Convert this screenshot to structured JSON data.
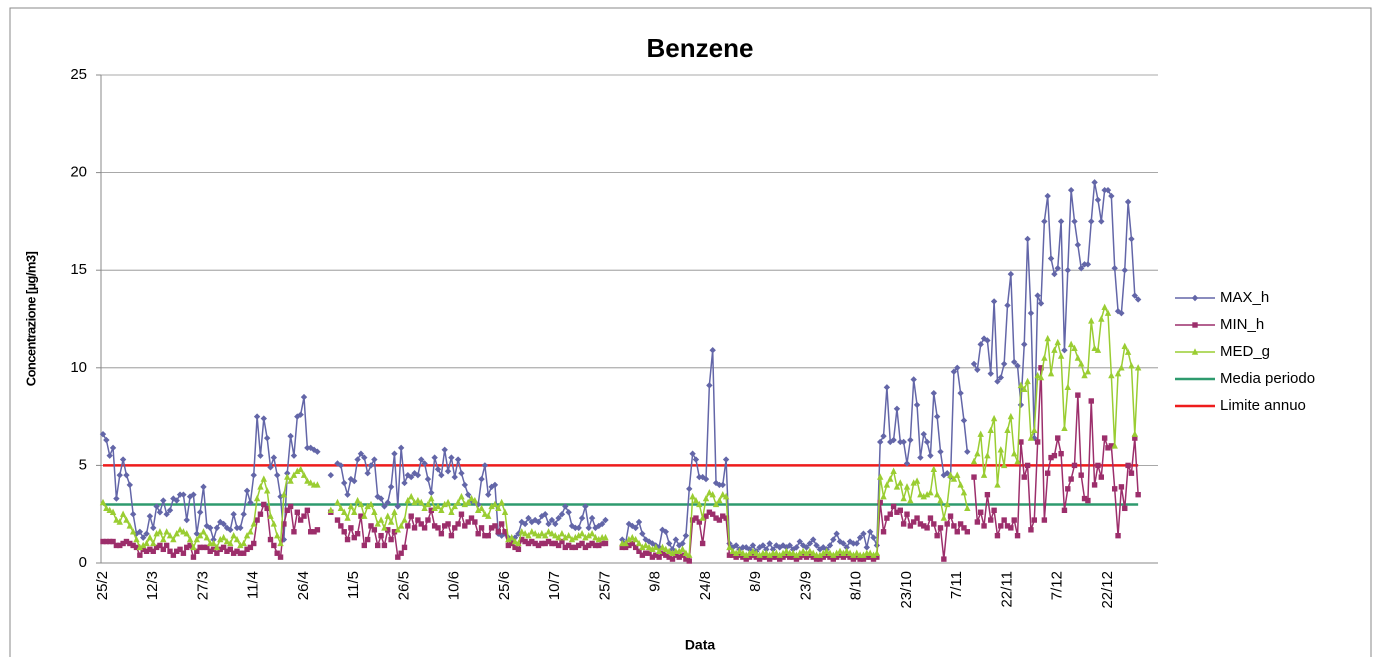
{
  "chart_data": {
    "type": "line",
    "title": "Benzene",
    "x_label": "Data",
    "y_label": "Concentrazione [µg/m3]",
    "categories": [
      "25/2",
      null,
      null,
      null,
      null,
      null,
      null,
      null,
      null,
      null,
      null,
      null,
      null,
      null,
      null,
      "12/3",
      null,
      null,
      null,
      null,
      null,
      null,
      null,
      null,
      null,
      null,
      null,
      null,
      null,
      null,
      "27/3",
      null,
      null,
      null,
      null,
      null,
      null,
      null,
      null,
      null,
      null,
      null,
      null,
      null,
      null,
      "11/4",
      null,
      null,
      null,
      null,
      null,
      null,
      null,
      null,
      null,
      null,
      null,
      null,
      null,
      null,
      "26/4",
      null,
      null,
      null,
      null,
      null,
      null,
      null,
      null,
      null,
      null,
      null,
      null,
      null,
      null,
      "11/5",
      null,
      null,
      null,
      null,
      null,
      null,
      null,
      null,
      null,
      null,
      null,
      null,
      null,
      null,
      "26/5",
      null,
      null,
      null,
      null,
      null,
      null,
      null,
      null,
      null,
      null,
      null,
      null,
      null,
      null,
      "10/6",
      null,
      null,
      null,
      null,
      null,
      null,
      null,
      null,
      null,
      null,
      null,
      null,
      null,
      null,
      "25/6",
      null,
      null,
      null,
      null,
      null,
      null,
      null,
      null,
      null,
      null,
      null,
      null,
      null,
      null,
      "10/7",
      null,
      null,
      null,
      null,
      null,
      null,
      null,
      null,
      null,
      null,
      null,
      null,
      null,
      null,
      "25/7",
      null,
      null,
      null,
      null,
      null,
      null,
      null,
      null,
      null,
      null,
      null,
      null,
      null,
      null,
      "9/8",
      null,
      null,
      null,
      null,
      null,
      null,
      null,
      null,
      null,
      null,
      null,
      null,
      null,
      null,
      "24/8",
      null,
      null,
      null,
      null,
      null,
      null,
      null,
      null,
      null,
      null,
      null,
      null,
      null,
      null,
      "8/9",
      null,
      null,
      null,
      null,
      null,
      null,
      null,
      null,
      null,
      null,
      null,
      null,
      null,
      null,
      "23/9",
      null,
      null,
      null,
      null,
      null,
      null,
      null,
      null,
      null,
      null,
      null,
      null,
      null,
      null,
      "8/10",
      null,
      null,
      null,
      null,
      null,
      null,
      null,
      null,
      null,
      null,
      null,
      null,
      null,
      null,
      "23/10",
      null,
      null,
      null,
      null,
      null,
      null,
      null,
      null,
      null,
      null,
      null,
      null,
      null,
      null,
      "7/11",
      null,
      null,
      null,
      null,
      null,
      null,
      null,
      null,
      null,
      null,
      null,
      null,
      null,
      null,
      "22/11",
      null,
      null,
      null,
      null,
      null,
      null,
      null,
      null,
      null,
      null,
      null,
      null,
      null,
      null,
      "7/12",
      null,
      null,
      null,
      null,
      null,
      null,
      null,
      null,
      null,
      null,
      null,
      null,
      null,
      null,
      "22/12",
      null,
      null,
      null,
      null,
      null,
      null,
      null,
      null,
      null
    ],
    "series": [
      {
        "name": "MAX_h",
        "color": "#6366a8",
        "marker": "diamond",
        "values": [
          6.6,
          6.3,
          5.5,
          5.9,
          3.3,
          4.5,
          5.3,
          4.5,
          4.0,
          2.5,
          1.5,
          1.6,
          1.3,
          1.5,
          2.4,
          1.8,
          2.9,
          2.6,
          3.2,
          2.5,
          2.7,
          3.3,
          3.2,
          3.5,
          3.5,
          2.2,
          3.4,
          3.5,
          1.5,
          2.6,
          3.9,
          1.9,
          1.8,
          1.2,
          1.8,
          2.1,
          2.0,
          1.8,
          1.7,
          2.5,
          1.8,
          1.8,
          2.5,
          3.7,
          3.1,
          4.5,
          7.5,
          5.5,
          7.4,
          6.4,
          4.9,
          5.4,
          4.5,
          3.4,
          1.2,
          4.6,
          6.5,
          5.5,
          7.5,
          7.6,
          8.5,
          5.9,
          5.9,
          5.8,
          5.7,
          null,
          null,
          null,
          4.5,
          null,
          5.1,
          5.0,
          4.1,
          3.5,
          4.3,
          4.2,
          5.3,
          5.6,
          5.4,
          4.6,
          5.0,
          5.3,
          3.4,
          3.3,
          2.9,
          3.1,
          3.9,
          5.6,
          2.9,
          5.9,
          4.1,
          4.5,
          4.4,
          4.6,
          4.5,
          5.3,
          5.1,
          4.3,
          3.6,
          5.4,
          4.8,
          4.5,
          5.8,
          4.7,
          5.4,
          4.4,
          5.3,
          4.6,
          4.0,
          3.5,
          3.2,
          3.1,
          3.0,
          4.3,
          5.0,
          3.5,
          3.9,
          4.0,
          1.5,
          1.4,
          1.5,
          1.3,
          1.2,
          1.3,
          1.5,
          2.1,
          2.0,
          2.3,
          2.1,
          2.2,
          2.1,
          2.4,
          2.5,
          2.0,
          2.2,
          2.0,
          2.3,
          2.5,
          2.9,
          2.6,
          1.9,
          1.8,
          1.8,
          2.3,
          2.9,
          1.8,
          2.3,
          1.8,
          1.9,
          2.0,
          2.2,
          null,
          null,
          null,
          null,
          1.2,
          1.0,
          2.0,
          1.9,
          1.8,
          2.1,
          1.5,
          1.2,
          1.1,
          1.0,
          0.9,
          0.8,
          1.7,
          1.6,
          1.0,
          0.7,
          1.2,
          0.9,
          1.0,
          1.4,
          3.8,
          5.6,
          5.3,
          4.4,
          4.4,
          4.3,
          9.1,
          10.9,
          4.1,
          4.0,
          4.0,
          5.3,
          1.0,
          0.8,
          0.9,
          0.7,
          0.8,
          0.8,
          0.7,
          0.9,
          0.6,
          0.8,
          0.9,
          0.7,
          1.0,
          0.7,
          0.9,
          0.8,
          0.9,
          0.8,
          0.9,
          0.7,
          0.8,
          1.1,
          0.9,
          0.8,
          1.0,
          1.2,
          0.9,
          0.7,
          0.8,
          0.7,
          0.9,
          1.2,
          1.5,
          1.1,
          1.0,
          0.8,
          1.1,
          1.0,
          1.0,
          1.3,
          1.5,
          0.8,
          1.6,
          1.3,
          0.9,
          6.2,
          6.5,
          9.0,
          6.2,
          6.3,
          7.9,
          6.2,
          6.2,
          5.1,
          6.3,
          9.4,
          8.1,
          5.4,
          6.6,
          6.2,
          5.5,
          8.7,
          7.5,
          5.7,
          4.5,
          4.6,
          4.4,
          9.8,
          10.0,
          8.7,
          7.3,
          5.7,
          null,
          10.2,
          9.9,
          11.2,
          11.5,
          11.4,
          9.7,
          13.4,
          9.3,
          9.5,
          10.2,
          13.2,
          14.8,
          10.3,
          10.1,
          8.1,
          11.2,
          16.6,
          12.8,
          6.4,
          13.7,
          13.3,
          17.5,
          18.8,
          15.6,
          14.8,
          15.1,
          17.5,
          10.9,
          15.0,
          19.1,
          17.5,
          16.3,
          15.1,
          15.3,
          15.3,
          17.5,
          19.5,
          18.6,
          17.5,
          19.1,
          19.1,
          18.8,
          15.1,
          12.9,
          12.8,
          15.0,
          18.5,
          16.6,
          13.7,
          13.5
        ]
      },
      {
        "name": "MIN_h",
        "color": "#9c2e6b",
        "marker": "square",
        "values": [
          1.1,
          1.1,
          1.1,
          1.1,
          0.9,
          0.9,
          1.0,
          1.1,
          1.0,
          0.9,
          0.8,
          0.4,
          0.7,
          0.6,
          0.7,
          0.6,
          0.8,
          0.9,
          0.7,
          0.9,
          0.6,
          0.4,
          0.6,
          0.7,
          0.5,
          0.8,
          0.9,
          0.3,
          0.6,
          0.8,
          0.8,
          0.8,
          0.6,
          0.7,
          0.5,
          0.7,
          0.8,
          0.6,
          0.7,
          0.5,
          0.6,
          0.5,
          0.5,
          0.7,
          0.8,
          1.0,
          2.2,
          2.5,
          3.0,
          2.8,
          1.2,
          0.9,
          0.5,
          0.3,
          2.0,
          2.7,
          2.9,
          1.6,
          2.6,
          2.2,
          2.4,
          2.7,
          1.6,
          1.6,
          1.7,
          null,
          null,
          null,
          2.6,
          null,
          2.2,
          1.9,
          1.6,
          1.2,
          1.8,
          1.3,
          1.5,
          2.4,
          0.9,
          1.2,
          1.9,
          1.7,
          0.9,
          1.4,
          0.9,
          1.7,
          1.2,
          1.6,
          0.3,
          0.5,
          0.8,
          1.9,
          2.4,
          1.8,
          2.2,
          2.0,
          1.8,
          2.2,
          2.7,
          1.9,
          1.8,
          1.5,
          1.9,
          2.0,
          1.4,
          1.8,
          2.0,
          2.5,
          1.9,
          2.1,
          2.3,
          2.1,
          1.5,
          1.8,
          1.4,
          1.4,
          1.8,
          1.9,
          1.6,
          2.0,
          1.6,
          0.9,
          1.0,
          0.8,
          0.7,
          1.2,
          1.1,
          1.0,
          1.1,
          1.0,
          0.9,
          1.0,
          1.0,
          1.1,
          1.0,
          1.0,
          0.9,
          1.1,
          0.8,
          0.9,
          0.8,
          0.8,
          0.9,
          1.0,
          0.8,
          0.9,
          1.0,
          0.9,
          0.9,
          1.0,
          1.0,
          null,
          null,
          null,
          null,
          0.8,
          0.8,
          0.9,
          1.0,
          0.8,
          0.6,
          0.4,
          0.5,
          0.5,
          0.3,
          0.4,
          0.3,
          0.5,
          0.4,
          0.3,
          0.2,
          0.4,
          0.3,
          0.4,
          0.2,
          0.1,
          2.2,
          2.3,
          2.1,
          1.0,
          2.4,
          2.6,
          2.5,
          2.3,
          2.2,
          2.4,
          2.3,
          0.4,
          0.4,
          0.3,
          0.4,
          0.3,
          0.2,
          0.3,
          0.4,
          0.3,
          0.2,
          0.3,
          0.3,
          0.2,
          0.3,
          0.3,
          0.2,
          0.3,
          0.4,
          0.3,
          0.3,
          0.2,
          0.3,
          0.4,
          0.3,
          0.4,
          0.3,
          0.2,
          0.2,
          0.3,
          0.4,
          0.3,
          0.2,
          0.3,
          0.4,
          0.3,
          0.4,
          0.3,
          0.2,
          0.3,
          0.2,
          0.2,
          0.3,
          0.3,
          0.2,
          0.3,
          3.1,
          1.6,
          2.3,
          2.5,
          2.9,
          2.6,
          2.7,
          2.0,
          2.5,
          1.9,
          2.1,
          2.3,
          2.0,
          1.9,
          1.8,
          2.3,
          2.0,
          1.4,
          1.8,
          0.2,
          2.0,
          2.4,
          1.9,
          1.6,
          2.0,
          1.8,
          1.6,
          null,
          4.4,
          2.1,
          2.6,
          1.9,
          3.5,
          2.2,
          2.7,
          1.4,
          1.9,
          2.2,
          1.9,
          1.8,
          2.2,
          1.4,
          6.2,
          4.4,
          5.0,
          1.7,
          2.2,
          6.2,
          10.0,
          2.2,
          4.6,
          5.4,
          5.5,
          6.4,
          5.6,
          2.7,
          3.8,
          4.3,
          5.0,
          8.6,
          4.5,
          3.3,
          3.2,
          8.3,
          4.0,
          5.0,
          4.4,
          6.4,
          5.9,
          6.0,
          3.8,
          1.4,
          3.9,
          2.8,
          5.0,
          4.6,
          6.4,
          3.5
        ]
      },
      {
        "name": "MED_g",
        "color": "#9acd32",
        "marker": "triangle",
        "values": [
          3.1,
          2.8,
          2.7,
          2.6,
          2.2,
          2.1,
          2.5,
          2.2,
          1.9,
          1.6,
          1.2,
          0.8,
          0.9,
          1.0,
          1.3,
          1.0,
          1.5,
          1.6,
          1.2,
          1.6,
          1.4,
          1.2,
          1.5,
          1.7,
          1.6,
          1.5,
          1.2,
          0.8,
          1.2,
          1.4,
          1.6,
          1.3,
          1.0,
          1.0,
          0.8,
          1.2,
          1.3,
          1.1,
          1.0,
          1.4,
          1.2,
          0.9,
          1.0,
          1.4,
          1.6,
          2.0,
          3.3,
          3.9,
          4.3,
          3.7,
          2.4,
          2.0,
          1.4,
          1.0,
          3.5,
          4.4,
          4.2,
          4.5,
          4.7,
          4.8,
          4.5,
          4.2,
          4.1,
          4.0,
          4.0,
          null,
          null,
          null,
          2.7,
          null,
          3.1,
          2.8,
          2.6,
          2.3,
          2.9,
          2.6,
          3.2,
          3.0,
          2.4,
          2.9,
          3.0,
          2.6,
          2.0,
          2.2,
          1.8,
          2.4,
          2.1,
          2.6,
          1.7,
          1.9,
          2.2,
          3.2,
          3.4,
          3.1,
          3.2,
          3.1,
          2.8,
          3.0,
          3.3,
          2.8,
          2.9,
          2.7,
          3.0,
          3.1,
          2.6,
          2.9,
          3.1,
          3.4,
          3.0,
          3.1,
          3.3,
          3.2,
          2.7,
          2.8,
          2.5,
          2.4,
          2.9,
          3.0,
          2.8,
          3.1,
          2.6,
          1.2,
          1.3,
          1.1,
          1.0,
          1.6,
          1.5,
          1.4,
          1.6,
          1.5,
          1.4,
          1.5,
          1.4,
          1.6,
          1.5,
          1.4,
          1.3,
          1.5,
          1.3,
          1.4,
          1.2,
          1.3,
          1.4,
          1.5,
          1.3,
          1.4,
          1.5,
          1.3,
          1.2,
          1.3,
          1.3,
          null,
          null,
          null,
          null,
          1.0,
          1.0,
          1.2,
          1.3,
          1.2,
          1.0,
          0.8,
          0.9,
          0.8,
          0.7,
          0.8,
          0.6,
          0.8,
          0.7,
          0.6,
          0.5,
          0.6,
          0.6,
          0.7,
          0.5,
          0.4,
          3.4,
          3.2,
          3.0,
          2.3,
          3.3,
          3.6,
          3.5,
          3.0,
          3.2,
          3.5,
          3.4,
          0.8,
          0.6,
          0.5,
          0.6,
          0.5,
          0.4,
          0.5,
          0.6,
          0.5,
          0.4,
          0.5,
          0.5,
          0.4,
          0.5,
          0.5,
          0.4,
          0.5,
          0.6,
          0.5,
          0.5,
          0.4,
          0.5,
          0.6,
          0.5,
          0.6,
          0.5,
          0.4,
          0.4,
          0.5,
          0.6,
          0.5,
          0.4,
          0.5,
          0.6,
          0.5,
          0.6,
          0.5,
          0.4,
          0.5,
          0.4,
          0.4,
          0.5,
          0.5,
          0.4,
          0.5,
          4.4,
          3.4,
          4.0,
          4.3,
          4.7,
          3.9,
          4.1,
          3.3,
          3.9,
          3.2,
          4.1,
          4.2,
          3.5,
          3.4,
          3.5,
          3.6,
          4.8,
          3.5,
          3.2,
          2.3,
          3.0,
          4.5,
          4.3,
          4.5,
          4.0,
          3.6,
          2.8,
          null,
          5.2,
          5.6,
          6.6,
          4.5,
          5.5,
          6.8,
          7.4,
          4.0,
          5.8,
          5.0,
          6.8,
          7.5,
          5.6,
          5.2,
          9.1,
          8.9,
          9.3,
          6.4,
          6.8,
          9.6,
          9.5,
          10.5,
          11.5,
          9.7,
          10.9,
          11.3,
          10.6,
          6.9,
          9.0,
          11.2,
          11.0,
          10.5,
          10.2,
          9.6,
          9.8,
          12.4,
          11.0,
          10.9,
          12.5,
          13.1,
          12.8,
          9.6,
          6.0,
          9.7,
          10.0,
          11.1,
          10.8,
          10.1,
          6.6,
          10.0
        ]
      }
    ],
    "reference_lines": [
      {
        "name": "Media periodo",
        "color": "#2e9a6e",
        "value": 3.0
      },
      {
        "name": "Limite annuo",
        "color": "#ee1c1c",
        "value": 5.0
      }
    ],
    "ylim": [
      0,
      25
    ],
    "yticks": [
      0,
      5,
      10,
      15,
      20,
      25
    ],
    "grid": true,
    "legend": "right"
  }
}
